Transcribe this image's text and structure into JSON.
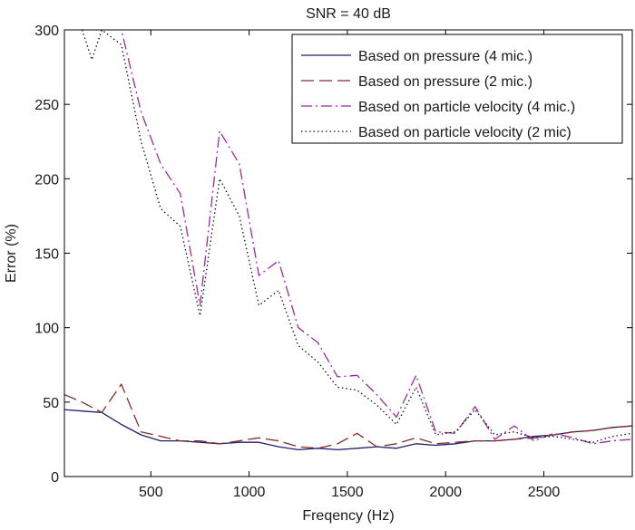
{
  "chart_data": {
    "type": "line",
    "title": "SNR = 40 dB",
    "xlabel": "Freqency (Hz)",
    "ylabel": "Error (%)",
    "xlim": [
      60,
      2950
    ],
    "ylim": [
      0,
      300
    ],
    "xticks": [
      500,
      1000,
      1500,
      2000,
      2500
    ],
    "yticks": [
      0,
      50,
      100,
      150,
      200,
      250,
      300
    ],
    "grid": false,
    "legend_position": "top-right",
    "series": [
      {
        "name": "Based on pressure (4 mic.)",
        "style": "solid",
        "color": "#1f1f6e",
        "x": [
          60,
          150,
          250,
          350,
          450,
          550,
          650,
          750,
          850,
          950,
          1050,
          1150,
          1250,
          1350,
          1450,
          1550,
          1650,
          1750,
          1850,
          1950,
          2050,
          2150,
          2250,
          2350,
          2450,
          2550,
          2650,
          2750,
          2850,
          2950
        ],
        "y": [
          45,
          44,
          43,
          35,
          28,
          24,
          24,
          23,
          22,
          23,
          23,
          20,
          18,
          19,
          18,
          19,
          20,
          19,
          22,
          21,
          22,
          24,
          24,
          25,
          27,
          28,
          30,
          31,
          33,
          34
        ]
      },
      {
        "name": "Based on pressure (2 mic.)",
        "style": "dashed",
        "color": "#8b2a2a",
        "x": [
          60,
          150,
          250,
          350,
          450,
          550,
          650,
          750,
          850,
          950,
          1050,
          1150,
          1250,
          1350,
          1450,
          1550,
          1650,
          1750,
          1850,
          1950,
          2050,
          2150,
          2250,
          2350,
          2450,
          2550,
          2650,
          2750,
          2850,
          2950
        ],
        "y": [
          55,
          50,
          43,
          62,
          30,
          27,
          24,
          24,
          22,
          24,
          26,
          24,
          20,
          19,
          22,
          29,
          20,
          22,
          26,
          22,
          23,
          24,
          24,
          25,
          26,
          28,
          30,
          31,
          33,
          34
        ]
      },
      {
        "name": "Based on particle velocity (4 mic.)",
        "style": "dashdot",
        "color": "#9a2aa0",
        "x": [
          150,
          250,
          350,
          450,
          550,
          650,
          750,
          850,
          950,
          1050,
          1150,
          1250,
          1350,
          1450,
          1550,
          1650,
          1750,
          1850,
          1950,
          2050,
          2150,
          2250,
          2350,
          2450,
          2550,
          2650,
          2750,
          2850,
          2950
        ],
        "y": [
          320,
          315,
          300,
          245,
          210,
          190,
          115,
          232,
          210,
          135,
          145,
          100,
          90,
          67,
          68,
          55,
          40,
          68,
          30,
          29,
          47,
          25,
          34,
          24,
          29,
          26,
          22,
          24,
          25
        ]
      },
      {
        "name": "Based on particle velocity (2 mic)",
        "style": "dotted",
        "color": "#111111",
        "x": [
          150,
          200,
          250,
          350,
          450,
          550,
          650,
          750,
          850,
          950,
          1050,
          1150,
          1250,
          1350,
          1450,
          1550,
          1650,
          1750,
          1850,
          1950,
          2050,
          2150,
          2250,
          2350,
          2450,
          2550,
          2650,
          2750,
          2850,
          2950
        ],
        "y": [
          300,
          280,
          300,
          290,
          225,
          180,
          168,
          108,
          200,
          175,
          115,
          125,
          88,
          77,
          60,
          58,
          48,
          35,
          60,
          28,
          30,
          45,
          28,
          30,
          26,
          27,
          25,
          23,
          27,
          29
        ]
      }
    ]
  }
}
